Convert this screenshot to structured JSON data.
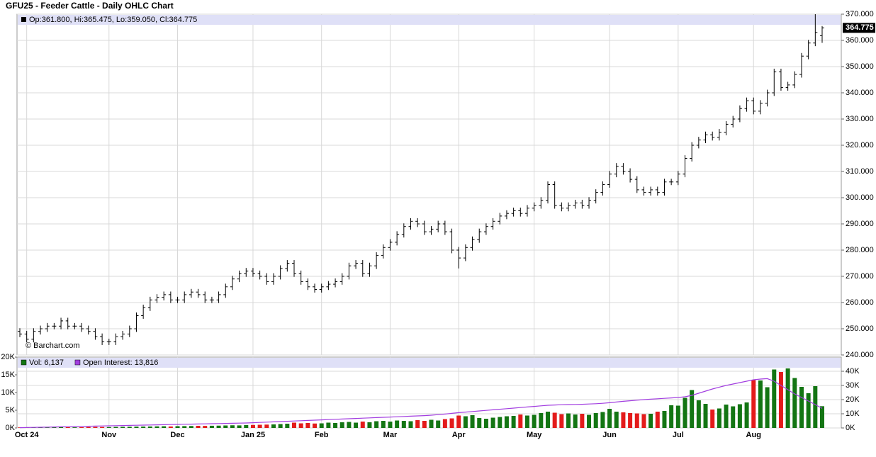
{
  "chart_data": [
    {
      "type": "ohlc",
      "title": "GFU25 - Feeder Cattle - Daily OHLC Chart",
      "info": "Op:361.800, Hi:365.475, Lo:359.050, Cl:364.775",
      "credit": "© Barchart.com",
      "last_label": "364.775",
      "color": "#000000",
      "grid": true,
      "categories": [
        null,
        "Oct 24",
        null,
        null,
        null,
        null,
        null,
        null,
        null,
        null,
        null,
        null,
        null,
        "Nov",
        null,
        null,
        null,
        null,
        null,
        null,
        null,
        null,
        null,
        "Dec",
        null,
        null,
        null,
        null,
        null,
        null,
        null,
        null,
        null,
        null,
        "Jan 25",
        null,
        null,
        null,
        null,
        null,
        null,
        null,
        null,
        null,
        "Feb",
        null,
        null,
        null,
        null,
        null,
        null,
        null,
        null,
        null,
        "Mar",
        null,
        null,
        null,
        null,
        null,
        null,
        null,
        null,
        null,
        "Apr",
        null,
        null,
        null,
        null,
        null,
        null,
        null,
        null,
        null,
        null,
        "May",
        null,
        null,
        null,
        null,
        null,
        null,
        null,
        null,
        null,
        null,
        "Jun",
        null,
        null,
        null,
        null,
        null,
        null,
        null,
        null,
        null,
        "Jul",
        null,
        null,
        null,
        null,
        null,
        null,
        null,
        null,
        null,
        null,
        "Aug",
        null,
        null,
        null,
        null,
        null,
        null,
        null,
        null,
        null,
        null
      ],
      "open": [
        249,
        248,
        246,
        249,
        250,
        251,
        251,
        253,
        251,
        251,
        250,
        249,
        247,
        245,
        245,
        247,
        248,
        250,
        255,
        258,
        261,
        262,
        263,
        261,
        261,
        263,
        264,
        263,
        261,
        261,
        263,
        266,
        269,
        271,
        272,
        271,
        270,
        268,
        270,
        273,
        275,
        271,
        268,
        266,
        265,
        266,
        267,
        268,
        270,
        274,
        275,
        271,
        274,
        278,
        281,
        283,
        286,
        289,
        291,
        290,
        287,
        288,
        290,
        287,
        280,
        277,
        281,
        284,
        287,
        289,
        291,
        293,
        294,
        295,
        294,
        296,
        297,
        299,
        305,
        297,
        296,
        297,
        298,
        297,
        299,
        302,
        305,
        309,
        312,
        310,
        307,
        303,
        302,
        303,
        302,
        306,
        306,
        309,
        315,
        320,
        322,
        324,
        323,
        325,
        328,
        330,
        334,
        337,
        333,
        336,
        340,
        348,
        342,
        343,
        347,
        354,
        359,
        361.8
      ],
      "high": [
        250.2,
        249.2,
        250.2,
        251.2,
        252.2,
        252.2,
        254.2,
        254.2,
        252.2,
        252.2,
        251.2,
        250.2,
        248.2,
        246.2,
        248.2,
        249.2,
        251.2,
        256.2,
        259.2,
        262.2,
        263.2,
        264.2,
        264.2,
        262.2,
        264.2,
        265.2,
        265.2,
        264.2,
        262.2,
        264.2,
        267.2,
        270.2,
        272.2,
        273.2,
        273.2,
        272.2,
        271.2,
        271.2,
        274.2,
        276.2,
        276.2,
        272.2,
        269.2,
        267.2,
        267.2,
        268.2,
        269.2,
        271.2,
        275.2,
        276.2,
        276.2,
        275.2,
        279.2,
        282.2,
        284.2,
        287.2,
        290.2,
        292.2,
        292.2,
        291.2,
        289.2,
        291.2,
        291.2,
        288.2,
        281.2,
        282.2,
        285.2,
        288.2,
        290.2,
        292.2,
        294.2,
        295.2,
        296.2,
        296.2,
        297.2,
        298.2,
        300.2,
        306.2,
        306.2,
        298.2,
        298.2,
        299.2,
        299.2,
        300.2,
        303.2,
        306.2,
        310.2,
        313.2,
        313.2,
        311.2,
        308.2,
        304.2,
        304.2,
        304.2,
        307.2,
        307.2,
        310.2,
        316.2,
        321.2,
        323.2,
        325.2,
        325.2,
        326.2,
        329.2,
        331.2,
        335.2,
        338.2,
        338.2,
        337.2,
        341.2,
        349.2,
        349.2,
        344.2,
        348.2,
        355.2,
        360.2,
        370,
        365.475
      ],
      "low": [
        246.8,
        244.8,
        244.8,
        247.8,
        248.8,
        249.8,
        249.8,
        249.8,
        249.8,
        248.8,
        247.8,
        245.8,
        243.8,
        243.8,
        243.8,
        245.8,
        246.8,
        248.8,
        253.8,
        256.8,
        259.8,
        260.8,
        259.8,
        259.8,
        259.8,
        261.8,
        261.8,
        259.8,
        259.8,
        259.8,
        261.8,
        264.8,
        267.8,
        269.8,
        269.8,
        268.8,
        266.8,
        266.8,
        268.8,
        271.8,
        269.8,
        266.8,
        264.8,
        263.8,
        263.8,
        264.8,
        265.8,
        266.8,
        268.8,
        272.8,
        269.8,
        269.8,
        272.8,
        276.8,
        279.8,
        281.8,
        284.8,
        287.8,
        288.8,
        285.8,
        285.8,
        286.8,
        285.8,
        278.8,
        273,
        275.8,
        279.8,
        282.8,
        285.8,
        287.8,
        289.8,
        291.8,
        292.8,
        292.8,
        292.8,
        294.8,
        295.8,
        297.8,
        295.8,
        294.8,
        294.8,
        295.8,
        295.8,
        295.8,
        297.8,
        300.8,
        303.8,
        307.8,
        308.8,
        305.8,
        301.8,
        300.8,
        300.8,
        300.8,
        300.8,
        304.8,
        304.8,
        307.8,
        313.8,
        318.8,
        320.8,
        321.8,
        321.8,
        323.8,
        326.8,
        328.8,
        332.8,
        331.8,
        331.8,
        334.8,
        338.8,
        340.8,
        340.8,
        341.8,
        345.8,
        352.8,
        357.8,
        359.05
      ],
      "close": [
        248,
        246,
        249,
        250,
        251,
        251,
        253,
        251,
        251,
        250,
        249,
        247,
        245,
        245,
        247,
        248,
        250,
        255,
        258,
        261,
        262,
        263,
        261,
        261,
        263,
        264,
        263,
        261,
        261,
        263,
        266,
        269,
        271,
        272,
        271,
        270,
        268,
        270,
        273,
        275,
        271,
        268,
        266,
        265,
        266,
        267,
        268,
        270,
        274,
        275,
        271,
        274,
        278,
        281,
        283,
        286,
        289,
        291,
        290,
        287,
        288,
        290,
        287,
        280,
        277,
        281,
        284,
        287,
        289,
        291,
        293,
        294,
        295,
        294,
        296,
        297,
        299,
        305,
        297,
        296,
        297,
        298,
        297,
        299,
        302,
        305,
        309,
        312,
        310,
        307,
        303,
        302,
        303,
        302,
        306,
        306,
        309,
        315,
        320,
        322,
        324,
        323,
        325,
        328,
        330,
        334,
        337,
        333,
        336,
        340,
        348,
        342,
        343,
        347,
        354,
        359,
        363,
        364.775
      ],
      "ylim": [
        240,
        370
      ],
      "yticks": [
        {
          "value": 240,
          "label": "240.000"
        },
        {
          "value": 250,
          "label": "250.000"
        },
        {
          "value": 260,
          "label": "260.000"
        },
        {
          "value": 270,
          "label": "270.000"
        },
        {
          "value": 280,
          "label": "280.000"
        },
        {
          "value": 290,
          "label": "290.000"
        },
        {
          "value": 300,
          "label": "300.000"
        },
        {
          "value": 310,
          "label": "310.000"
        },
        {
          "value": 320,
          "label": "320.000"
        },
        {
          "value": 330,
          "label": "330.000"
        },
        {
          "value": 340,
          "label": "340.000"
        },
        {
          "value": 350,
          "label": "350.000"
        },
        {
          "value": 360,
          "label": "360.000"
        },
        {
          "value": 370,
          "label": "370.000"
        }
      ]
    },
    {
      "type": "bar",
      "up_color": "#137513",
      "down_color": "#e31b1b",
      "grid": true,
      "series": [
        {
          "name": "Vol: 6,137",
          "color": "#137513",
          "values": [
            150,
            120,
            180,
            200,
            150,
            220,
            250,
            200,
            180,
            210,
            260,
            300,
            280,
            250,
            300,
            320,
            350,
            380,
            400,
            420,
            450,
            480,
            420,
            500,
            520,
            550,
            600,
            580,
            620,
            650,
            700,
            750,
            720,
            800,
            850,
            900,
            950,
            1000,
            1100,
            1200,
            1500,
            1300,
            1400,
            1250,
            1300,
            1500,
            1400,
            1600,
            1700,
            1500,
            1800,
            1600,
            1900,
            2000,
            1800,
            2100,
            2000,
            1900,
            2200,
            2000,
            2300,
            2100,
            2500,
            2700,
            3500,
            3300,
            3600,
            2800,
            2600,
            2900,
            3100,
            3300,
            3400,
            3800,
            3500,
            3700,
            4200,
            4600,
            4300,
            3900,
            4100,
            3800,
            4000,
            3700,
            4200,
            4500,
            5400,
            4600,
            4400,
            4200,
            4100,
            3900,
            4000,
            4600,
            4800,
            6400,
            6300,
            8500,
            10700,
            7800,
            6800,
            5200,
            5500,
            6600,
            6100,
            6700,
            7200,
            13500,
            13400,
            11500,
            16500,
            15800,
            16800,
            14100,
            11600,
            9800,
            11800,
            6137
          ]
        },
        {
          "name": "Open Interest: 13,816",
          "color": "#a23ee0",
          "axis": "y2",
          "values": [
            200,
            300,
            400,
            500,
            600,
            700,
            800,
            900,
            1000,
            1100,
            1200,
            1300,
            1400,
            1500,
            1600,
            1700,
            1800,
            1900,
            2000,
            2100,
            2200,
            2300,
            2400,
            2500,
            2600,
            2700,
            2800,
            2900,
            3000,
            3100,
            3200,
            3300,
            3400,
            3500,
            3700,
            3900,
            4100,
            4300,
            4500,
            4700,
            4900,
            5100,
            5300,
            5500,
            5700,
            5900,
            6100,
            6300,
            6500,
            6700,
            6900,
            7100,
            7300,
            7500,
            7700,
            7900,
            8100,
            8300,
            8500,
            8700,
            9000,
            9400,
            9800,
            10300,
            10800,
            11200,
            11600,
            12000,
            12400,
            12800,
            13200,
            13600,
            14000,
            14400,
            14800,
            15200,
            15600,
            16000,
            16200,
            16400,
            16500,
            16600,
            16700,
            16900,
            17100,
            17400,
            17800,
            18300,
            18800,
            19200,
            19600,
            20000,
            20300,
            20600,
            20900,
            21200,
            21500,
            22000,
            23000,
            24500,
            26000,
            27500,
            28800,
            30000,
            31000,
            32000,
            33000,
            34000,
            34500,
            34800,
            33000,
            30000,
            27000,
            24000,
            21500,
            19000,
            16500,
            13816
          ]
        }
      ],
      "ylim": [
        0,
        20000
      ],
      "yticks": [
        {
          "value": 0,
          "label": "0K"
        },
        {
          "value": 5000,
          "label": "5K"
        },
        {
          "value": 10000,
          "label": "10K"
        },
        {
          "value": 15000,
          "label": "15K"
        },
        {
          "value": 20000,
          "label": "20K"
        }
      ],
      "y2lim": [
        0,
        50000
      ],
      "y2ticks": [
        {
          "value": 0,
          "label": "0K"
        },
        {
          "value": 10000,
          "label": "10K"
        },
        {
          "value": 20000,
          "label": "20K"
        },
        {
          "value": 30000,
          "label": "30K"
        },
        {
          "value": 40000,
          "label": "40K"
        }
      ]
    }
  ]
}
